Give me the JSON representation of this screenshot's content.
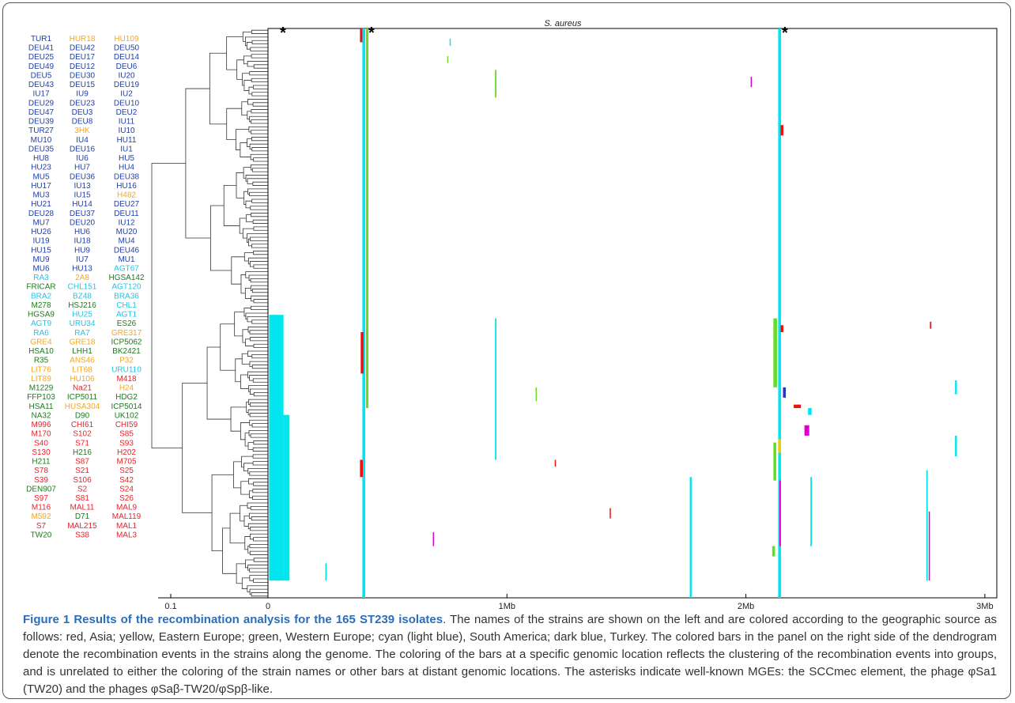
{
  "figure": {
    "plot_title": "S. aureus",
    "asterisk": "*",
    "caption_title": "Figure 1 Results of the recombination analysis for the 165 ST239 isolates",
    "caption_text": ". The names of the strains are shown on the left and are colored according to the geographic source as follows: red, Asia; yellow, Eastern Europe; green, Western Europe; cyan (light blue), South America; dark blue, Turkey. The colored bars in the panel on the right side of the dendrogram denote the recombination events in the strains along the genome. The coloring of the bars at a specific genomic location reflects the clustering of the recombination events into groups, and is unrelated to either the coloring of the strain names or other bars at distant genomic locations. The asterisks indicate well-known MGEs: the SCCmec element, the phage φSa1 (TW20) and the phages φSaβ-TW20/φSpβ-like."
  },
  "colors": {
    "asia": "#e8232a",
    "eastern_europe": "#f5a623",
    "western_europe": "#1f7a1f",
    "south_america": "#22c4e8",
    "turkey": "#1f3faa",
    "bar_cyan": "#00e5ee",
    "bar_green": "#66dd22",
    "bar_magenta": "#dd00cc",
    "bar_red": "#ee1111",
    "bar_blue": "#2233dd",
    "bar_yellow": "#eecc00"
  },
  "strain_columns": [
    {
      "col": 0,
      "names": [
        [
          "TUR1",
          "turkey"
        ],
        [
          "DEU41",
          "turkey"
        ],
        [
          "DEU25",
          "turkey"
        ],
        [
          "DEU49",
          "turkey"
        ],
        [
          "DEU5",
          "turkey"
        ],
        [
          "DEU43",
          "turkey"
        ],
        [
          "IU17",
          "turkey"
        ],
        [
          "DEU29",
          "turkey"
        ],
        [
          "DEU47",
          "turkey"
        ],
        [
          "DEU39",
          "turkey"
        ],
        [
          "TUR27",
          "turkey"
        ],
        [
          "MU10",
          "turkey"
        ],
        [
          "DEU35",
          "turkey"
        ],
        [
          "HU8",
          "turkey"
        ],
        [
          "HU23",
          "turkey"
        ],
        [
          "MU5",
          "turkey"
        ],
        [
          "HU17",
          "turkey"
        ],
        [
          "MU3",
          "turkey"
        ],
        [
          "HU21",
          "turkey"
        ],
        [
          "DEU28",
          "turkey"
        ],
        [
          "MU7",
          "turkey"
        ],
        [
          "HU26",
          "turkey"
        ],
        [
          "IU19",
          "turkey"
        ],
        [
          "HU15",
          "turkey"
        ],
        [
          "MU9",
          "turkey"
        ],
        [
          "MU6",
          "turkey"
        ],
        [
          "RA3",
          "south_america"
        ],
        [
          "FRICAR",
          "western_europe"
        ],
        [
          "BRA2",
          "south_america"
        ],
        [
          "M278",
          "western_europe"
        ],
        [
          "HGSA9",
          "western_europe"
        ],
        [
          "AGT9",
          "south_america"
        ],
        [
          "RA6",
          "south_america"
        ],
        [
          "GRE4",
          "eastern_europe"
        ],
        [
          "HSA10",
          "western_europe"
        ],
        [
          "R35",
          "western_europe"
        ],
        [
          "LIT76",
          "eastern_europe"
        ],
        [
          "LIT89",
          "eastern_europe"
        ],
        [
          "M1229",
          "western_europe"
        ],
        [
          "FFP103",
          "western_europe"
        ],
        [
          "HSA11",
          "western_europe"
        ],
        [
          "NA32",
          "western_europe"
        ],
        [
          "M996",
          "asia"
        ],
        [
          "M170",
          "asia"
        ],
        [
          "S40",
          "asia"
        ],
        [
          "S130",
          "asia"
        ],
        [
          "H211",
          "western_europe"
        ],
        [
          "S78",
          "asia"
        ],
        [
          "S39",
          "asia"
        ],
        [
          "DEN907",
          "western_europe"
        ],
        [
          "S97",
          "asia"
        ],
        [
          "M116",
          "asia"
        ],
        [
          "M592",
          "eastern_europe"
        ],
        [
          "S7",
          "asia"
        ],
        [
          "TW20",
          "western_europe"
        ]
      ]
    },
    {
      "col": 1,
      "names": [
        [
          "HUR18",
          "eastern_europe"
        ],
        [
          "DEU42",
          "turkey"
        ],
        [
          "DEU17",
          "turkey"
        ],
        [
          "DEU12",
          "turkey"
        ],
        [
          "DEU30",
          "turkey"
        ],
        [
          "DEU15",
          "turkey"
        ],
        [
          "IU9",
          "turkey"
        ],
        [
          "DEU23",
          "turkey"
        ],
        [
          "DEU3",
          "turkey"
        ],
        [
          "DEU8",
          "turkey"
        ],
        [
          "3HK",
          "eastern_europe"
        ],
        [
          "IU4",
          "turkey"
        ],
        [
          "DEU16",
          "turkey"
        ],
        [
          "IU6",
          "turkey"
        ],
        [
          "HU7",
          "turkey"
        ],
        [
          "DEU36",
          "turkey"
        ],
        [
          "IU13",
          "turkey"
        ],
        [
          "IU15",
          "turkey"
        ],
        [
          "HU14",
          "turkey"
        ],
        [
          "DEU37",
          "turkey"
        ],
        [
          "DEU20",
          "turkey"
        ],
        [
          "HU6",
          "turkey"
        ],
        [
          "IU18",
          "turkey"
        ],
        [
          "HU9",
          "turkey"
        ],
        [
          "IU7",
          "turkey"
        ],
        [
          "HU13",
          "turkey"
        ],
        [
          "2A8",
          "eastern_europe"
        ],
        [
          "CHL151",
          "south_america"
        ],
        [
          "BZ48",
          "south_america"
        ],
        [
          "HSJ216",
          "western_europe"
        ],
        [
          "HU25",
          "south_america"
        ],
        [
          "URU34",
          "south_america"
        ],
        [
          "RA7",
          "south_america"
        ],
        [
          "GRE18",
          "eastern_europe"
        ],
        [
          "LHH1",
          "western_europe"
        ],
        [
          "ANS46",
          "eastern_europe"
        ],
        [
          "LIT68",
          "eastern_europe"
        ],
        [
          "HU106",
          "eastern_europe"
        ],
        [
          "Na21",
          "asia"
        ],
        [
          "ICP5011",
          "western_europe"
        ],
        [
          "HUSA304",
          "eastern_europe"
        ],
        [
          "D90",
          "western_europe"
        ],
        [
          "CHI61",
          "asia"
        ],
        [
          "S102",
          "asia"
        ],
        [
          "S71",
          "asia"
        ],
        [
          "H216",
          "western_europe"
        ],
        [
          "S87",
          "asia"
        ],
        [
          "S21",
          "asia"
        ],
        [
          "S106",
          "asia"
        ],
        [
          "S2",
          "asia"
        ],
        [
          "S81",
          "asia"
        ],
        [
          "MAL11",
          "asia"
        ],
        [
          "D71",
          "western_europe"
        ],
        [
          "MAL215",
          "asia"
        ],
        [
          "S38",
          "asia"
        ]
      ]
    },
    {
      "col": 2,
      "names": [
        [
          "HU109",
          "eastern_europe"
        ],
        [
          "DEU50",
          "turkey"
        ],
        [
          "DEU14",
          "turkey"
        ],
        [
          "DEU6",
          "turkey"
        ],
        [
          "IU20",
          "turkey"
        ],
        [
          "DEU19",
          "turkey"
        ],
        [
          "IU2",
          "turkey"
        ],
        [
          "DEU10",
          "turkey"
        ],
        [
          "DEU2",
          "turkey"
        ],
        [
          "IU11",
          "turkey"
        ],
        [
          "IU10",
          "turkey"
        ],
        [
          "HU11",
          "turkey"
        ],
        [
          "IU1",
          "turkey"
        ],
        [
          "HU5",
          "turkey"
        ],
        [
          "HU4",
          "turkey"
        ],
        [
          "DEU38",
          "turkey"
        ],
        [
          "HU16",
          "turkey"
        ],
        [
          "H482",
          "eastern_europe"
        ],
        [
          "DEU27",
          "turkey"
        ],
        [
          "DEU11",
          "turkey"
        ],
        [
          "IU12",
          "turkey"
        ],
        [
          "MU20",
          "turkey"
        ],
        [
          "MU4",
          "turkey"
        ],
        [
          "DEU46",
          "turkey"
        ],
        [
          "MU1",
          "turkey"
        ],
        [
          "AGT67",
          "south_america"
        ],
        [
          "HGSA142",
          "western_europe"
        ],
        [
          "AGT120",
          "south_america"
        ],
        [
          "BRA36",
          "south_america"
        ],
        [
          "CHL1",
          "south_america"
        ],
        [
          "AGT1",
          "south_america"
        ],
        [
          "ES26",
          "western_europe"
        ],
        [
          "GRE317",
          "eastern_europe"
        ],
        [
          "ICP5062",
          "western_europe"
        ],
        [
          "BK2421",
          "western_europe"
        ],
        [
          "P32",
          "eastern_europe"
        ],
        [
          "URU110",
          "south_america"
        ],
        [
          "M418",
          "asia"
        ],
        [
          "H24",
          "eastern_europe"
        ],
        [
          "HDG2",
          "western_europe"
        ],
        [
          "ICP5014",
          "western_europe"
        ],
        [
          "UK102",
          "western_europe"
        ],
        [
          "CHI59",
          "asia"
        ],
        [
          "S85",
          "asia"
        ],
        [
          "S93",
          "asia"
        ],
        [
          "H202",
          "asia"
        ],
        [
          "M705",
          "asia"
        ],
        [
          "S25",
          "asia"
        ],
        [
          "S42",
          "asia"
        ],
        [
          "S24",
          "asia"
        ],
        [
          "S26",
          "asia"
        ],
        [
          "MAL9",
          "asia"
        ],
        [
          "MAL119",
          "asia"
        ],
        [
          "MAL1",
          "asia"
        ],
        [
          "MAL3",
          "asia"
        ]
      ]
    }
  ],
  "chart_data": {
    "type": "heatmap",
    "title": "S. aureus",
    "x_ticks": [
      "0.1",
      "0",
      "1Mb",
      "2Mb",
      "3Mb"
    ],
    "genome_ticks_mb": [
      0,
      1,
      2,
      3
    ],
    "xlim_mb": [
      0,
      3.05
    ],
    "asterisks_mb": [
      0.03,
      0.4,
      2.13
    ],
    "rows": 165,
    "tracks": [
      {
        "color": "bar_cyan",
        "x_mb": 0.005,
        "w_mb": 0.06,
        "row_start": 83,
        "row_end": 160
      },
      {
        "color": "bar_cyan",
        "x_mb": 0.065,
        "w_mb": 0.025,
        "row_start": 112,
        "row_end": 160
      },
      {
        "color": "bar_cyan",
        "x_mb": 0.395,
        "w_mb": 0.012,
        "row_start": 0,
        "row_end": 165
      },
      {
        "color": "bar_green",
        "x_mb": 0.41,
        "w_mb": 0.01,
        "row_start": 0,
        "row_end": 110
      },
      {
        "color": "bar_red",
        "x_mb": 0.385,
        "w_mb": 0.01,
        "row_start": 0,
        "row_end": 4
      },
      {
        "color": "bar_red",
        "x_mb": 0.388,
        "w_mb": 0.012,
        "row_start": 88,
        "row_end": 100
      },
      {
        "color": "bar_red",
        "x_mb": 0.385,
        "w_mb": 0.012,
        "row_start": 125,
        "row_end": 130
      },
      {
        "color": "bar_cyan",
        "x_mb": 0.95,
        "w_mb": 0.006,
        "row_start": 84,
        "row_end": 125
      },
      {
        "color": "bar_green",
        "x_mb": 0.95,
        "w_mb": 0.006,
        "row_start": 12,
        "row_end": 20
      },
      {
        "color": "bar_cyan",
        "x_mb": 1.765,
        "w_mb": 0.008,
        "row_start": 130,
        "row_end": 165
      },
      {
        "color": "bar_cyan",
        "x_mb": 2.135,
        "w_mb": 0.012,
        "row_start": 0,
        "row_end": 165
      },
      {
        "color": "bar_green",
        "x_mb": 2.115,
        "w_mb": 0.015,
        "row_start": 84,
        "row_end": 104
      },
      {
        "color": "bar_green",
        "x_mb": 2.115,
        "w_mb": 0.012,
        "row_start": 120,
        "row_end": 131
      },
      {
        "color": "bar_magenta",
        "x_mb": 2.14,
        "w_mb": 0.006,
        "row_start": 131,
        "row_end": 150
      },
      {
        "color": "bar_cyan",
        "x_mb": 2.27,
        "w_mb": 0.006,
        "row_start": 130,
        "row_end": 150
      },
      {
        "color": "bar_cyan",
        "x_mb": 2.755,
        "w_mb": 0.006,
        "row_start": 128,
        "row_end": 160
      },
      {
        "color": "bar_magenta",
        "x_mb": 2.765,
        "w_mb": 0.005,
        "row_start": 140,
        "row_end": 160
      },
      {
        "color": "bar_cyan",
        "x_mb": 2.875,
        "w_mb": 0.008,
        "row_start": 102,
        "row_end": 106
      },
      {
        "color": "bar_cyan",
        "x_mb": 2.875,
        "w_mb": 0.008,
        "row_start": 118,
        "row_end": 124
      },
      {
        "color": "bar_red",
        "x_mb": 2.145,
        "w_mb": 0.012,
        "row_start": 28,
        "row_end": 31
      },
      {
        "color": "bar_red",
        "x_mb": 2.145,
        "w_mb": 0.012,
        "row_start": 86,
        "row_end": 88
      },
      {
        "color": "bar_blue",
        "x_mb": 2.155,
        "w_mb": 0.012,
        "row_start": 104,
        "row_end": 107
      },
      {
        "color": "bar_red",
        "x_mb": 2.2,
        "w_mb": 0.03,
        "row_start": 109,
        "row_end": 110
      },
      {
        "color": "bar_magenta",
        "x_mb": 2.245,
        "w_mb": 0.02,
        "row_start": 115,
        "row_end": 118
      },
      {
        "color": "bar_yellow",
        "x_mb": 2.135,
        "w_mb": 0.012,
        "row_start": 119,
        "row_end": 123
      },
      {
        "color": "bar_red",
        "x_mb": 2.77,
        "w_mb": 0.006,
        "row_start": 85,
        "row_end": 87
      },
      {
        "color": "bar_cyan",
        "x_mb": 0.76,
        "w_mb": 0.004,
        "row_start": 3,
        "row_end": 5
      },
      {
        "color": "bar_green",
        "x_mb": 0.75,
        "w_mb": 0.004,
        "row_start": 8,
        "row_end": 10
      },
      {
        "color": "bar_magenta",
        "x_mb": 2.02,
        "w_mb": 0.005,
        "row_start": 14,
        "row_end": 17
      },
      {
        "color": "bar_magenta",
        "x_mb": 0.69,
        "w_mb": 0.004,
        "row_start": 146,
        "row_end": 150
      },
      {
        "color": "bar_red",
        "x_mb": 1.43,
        "w_mb": 0.004,
        "row_start": 139,
        "row_end": 142
      },
      {
        "color": "bar_red",
        "x_mb": 1.2,
        "w_mb": 0.004,
        "row_start": 125,
        "row_end": 127
      },
      {
        "color": "bar_cyan",
        "x_mb": 0.24,
        "w_mb": 0.006,
        "row_start": 155,
        "row_end": 160
      },
      {
        "color": "bar_green",
        "x_mb": 1.12,
        "w_mb": 0.004,
        "row_start": 104,
        "row_end": 108
      },
      {
        "color": "bar_cyan",
        "x_mb": 2.26,
        "w_mb": 0.015,
        "row_start": 110,
        "row_end": 112
      },
      {
        "color": "bar_green",
        "x_mb": 2.11,
        "w_mb": 0.012,
        "row_start": 150,
        "row_end": 153
      }
    ]
  }
}
